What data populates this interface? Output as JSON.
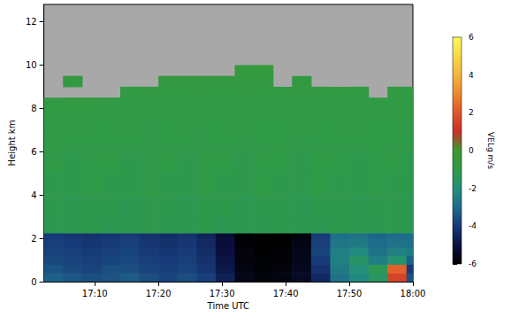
{
  "chart_data": {
    "type": "heatmap",
    "x_label": "Time UTC",
    "y_label": "Height km",
    "xlim": [
      1022,
      1080
    ],
    "xticks": [
      {
        "value": 1030,
        "label": "17:10"
      },
      {
        "value": 1040,
        "label": "17:20"
      },
      {
        "value": 1050,
        "label": "17:30"
      },
      {
        "value": 1060,
        "label": "17:40"
      },
      {
        "value": 1070,
        "label": "17:50"
      },
      {
        "value": 1080,
        "label": "18:00"
      }
    ],
    "ylim": [
      0,
      12.8
    ],
    "yticks": [
      0,
      2,
      4,
      6,
      8,
      10,
      12
    ],
    "grid": false,
    "colorbar_label": "VELg m/s",
    "colorbar_range": [
      -6,
      6
    ],
    "colorbar_ticks": [
      -6,
      -4,
      -2,
      0,
      2,
      4,
      6
    ],
    "colors": [
      "#000000",
      "#0b1040",
      "#173a78",
      "#1e6b8c",
      "#23907a",
      "#2f9a48",
      "#3d9a2f",
      "#c83228",
      "#e0552a",
      "#ec8a2e",
      "#f4b43a",
      "#f8d848",
      "#fcf85c"
    ],
    "x_bins": [
      1022,
      1025,
      1028,
      1031,
      1034,
      1037,
      1040,
      1043,
      1046,
      1049,
      1052,
      1055,
      1058,
      1061,
      1064,
      1067,
      1070,
      1073,
      1076,
      1079,
      1080
    ],
    "y_bins": [
      0,
      0.4,
      0.8,
      1.2,
      1.6,
      2.0,
      2.25,
      3,
      4,
      5,
      6,
      7,
      7.5,
      8,
      8.5,
      9,
      9.5,
      10
    ],
    "values": [
      [
        -3.2,
        -3.4,
        -3.6,
        -3.5,
        -3.3,
        -3.6,
        -3.8,
        -3.6,
        -3.9,
        -4.6,
        -5.6,
        -5.8,
        -5.7,
        -5.4,
        -4.4,
        -2.8,
        -2.2,
        -1.5,
        1.5,
        -3.5
      ],
      [
        -3.5,
        -3.7,
        -3.8,
        -3.6,
        -3.6,
        -3.8,
        -3.9,
        -3.8,
        -4.1,
        -4.8,
        -5.7,
        -5.9,
        -5.8,
        -5.5,
        -4.2,
        -2.6,
        -2.0,
        -1.2,
        2.2,
        -4.0
      ],
      [
        -3.7,
        -3.8,
        -3.9,
        -3.8,
        -3.7,
        -3.9,
        -4.0,
        -3.9,
        -4.2,
        -4.9,
        -5.8,
        -5.9,
        -5.9,
        -5.6,
        -4.0,
        -2.4,
        -1.6,
        -2.5,
        -1.8,
        -3.2
      ],
      [
        -3.8,
        -3.9,
        -4.0,
        -3.9,
        -3.8,
        -4.0,
        -4.1,
        -4.0,
        -4.3,
        -5.0,
        -5.8,
        -6.0,
        -5.9,
        -5.6,
        -3.8,
        -2.5,
        -2.2,
        -2.8,
        -2.4,
        -2.6
      ],
      [
        -3.9,
        -4.0,
        -4.1,
        -4.0,
        -3.9,
        -4.1,
        -4.2,
        -4.1,
        -4.4,
        -5.1,
        -5.9,
        -6.0,
        -6.0,
        -5.7,
        -3.9,
        -2.7,
        -2.6,
        -3.0,
        -2.8,
        -2.9
      ],
      [
        -4.0,
        -4.1,
        -4.2,
        -4.1,
        -4.0,
        -4.2,
        -4.3,
        -4.2,
        -4.5,
        -5.2,
        -5.9,
        -6.0,
        -6.0,
        -5.8,
        -4.0,
        -2.9,
        -2.8,
        -3.1,
        -3.0,
        -3.0
      ],
      [
        -1.2,
        -1.2,
        -1.1,
        -1.2,
        -1.2,
        -1.1,
        -1.2,
        -1.2,
        -1.1,
        -1.2,
        -1.2,
        -1.2,
        -1.1,
        -1.2,
        -1.2,
        -1.1,
        -1.2,
        -1.2,
        -1.1,
        -1.2
      ],
      [
        -1.1,
        -1.2,
        -1.1,
        -1.1,
        -1.2,
        -1.1,
        -1.1,
        -1.2,
        -1.1,
        -1.1,
        -1.2,
        -1.1,
        -1.1,
        -1.2,
        -1.1,
        -1.1,
        -1.2,
        -1.1,
        -1.1,
        -1.2
      ],
      [
        -1.1,
        -1.1,
        -1.0,
        -1.1,
        -1.1,
        -1.0,
        -1.1,
        -1.1,
        -1.0,
        -1.1,
        -1.1,
        -1.0,
        -1.1,
        -1.1,
        -1.0,
        -1.1,
        -1.1,
        -1.0,
        -1.1,
        -1.1
      ],
      [
        -1.0,
        -1.1,
        -1.0,
        -1.0,
        -1.1,
        -1.0,
        -1.0,
        -1.1,
        -1.0,
        -1.0,
        -1.1,
        -1.0,
        -1.0,
        -1.1,
        -1.0,
        -1.0,
        -1.1,
        -1.0,
        -1.0,
        -1.1
      ],
      [
        -1.0,
        -1.0,
        -1.0,
        -1.0,
        -1.0,
        -1.0,
        -1.0,
        -1.0,
        -1.0,
        -1.0,
        -1.0,
        -1.0,
        -1.0,
        -1.0,
        -1.0,
        -1.0,
        -1.0,
        -1.0,
        -1.0,
        -1.0
      ],
      [
        -1.0,
        -0.9,
        -1.0,
        -1.0,
        -0.9,
        -1.0,
        -1.0,
        -0.9,
        -1.0,
        -1.0,
        -0.9,
        -1.0,
        -1.0,
        -0.9,
        -1.0,
        -1.0,
        -0.9,
        -1.0,
        -1.0,
        -0.9
      ],
      [
        -0.9,
        -0.9,
        -0.9,
        -0.9,
        -0.9,
        -0.9,
        -0.9,
        -0.9,
        -0.9,
        -0.9,
        -0.9,
        -0.9,
        -0.9,
        -0.9,
        -0.9,
        -0.9,
        -0.9,
        -0.9,
        -0.9,
        -0.9
      ],
      [
        -0.8,
        -0.8,
        -0.8,
        -0.9,
        -0.9,
        -0.9,
        -0.9,
        -0.9,
        -0.9,
        -0.9,
        -0.9,
        -0.9,
        -0.9,
        -0.9,
        -0.9,
        -0.9,
        -0.9,
        -0.9,
        -0.9,
        -0.9
      ],
      [
        null,
        null,
        null,
        null,
        -0.8,
        -0.8,
        -0.8,
        -0.8,
        -0.8,
        -0.8,
        -0.8,
        -0.8,
        -0.8,
        -0.8,
        -0.8,
        -0.8,
        -0.8,
        null,
        -0.8,
        -0.8
      ],
      [
        null,
        -0.7,
        null,
        null,
        null,
        null,
        -0.7,
        -0.7,
        -0.7,
        -0.7,
        -0.7,
        -0.7,
        null,
        -0.7,
        null,
        null,
        null,
        null,
        null,
        null
      ],
      [
        null,
        null,
        null,
        null,
        null,
        null,
        null,
        null,
        null,
        null,
        -0.6,
        -0.6,
        null,
        null,
        null,
        null,
        null,
        null,
        null,
        null
      ]
    ]
  }
}
